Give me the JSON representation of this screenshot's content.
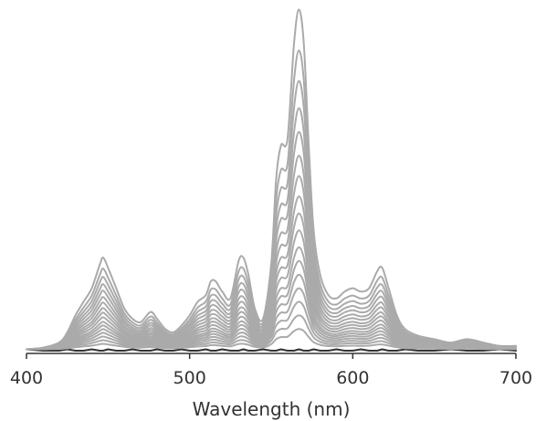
{
  "chart_data": {
    "type": "line",
    "xlabel": "Wavelength (nm)",
    "ylabel": "",
    "xlim": [
      400,
      700
    ],
    "ylim": [
      0,
      1
    ],
    "x_ticks": [
      400,
      500,
      600,
      700
    ],
    "x_tick_labels": [
      "400",
      "500",
      "600",
      "700"
    ],
    "grid": false,
    "legend": "none",
    "colors": {
      "spectra": "#aaaaaa",
      "baseline": "#333333",
      "axis": "#333333"
    },
    "spectrum_count": 17,
    "scale_factors": [
      1.0,
      0.88,
      0.79,
      0.71,
      0.64,
      0.57,
      0.51,
      0.45,
      0.4,
      0.35,
      0.3,
      0.26,
      0.22,
      0.18,
      0.14,
      0.1,
      0.06
    ],
    "reference_spectrum": {
      "x": [
        400,
        410,
        420,
        425,
        430,
        435,
        440,
        445,
        447,
        450,
        455,
        460,
        465,
        470,
        476,
        480,
        485,
        490,
        495,
        500,
        505,
        510,
        513,
        516,
        520,
        525,
        530,
        533,
        536,
        540,
        545,
        550,
        553,
        556,
        560,
        564,
        567,
        570,
        573,
        576,
        580,
        585,
        590,
        595,
        600,
        605,
        610,
        615,
        618,
        622,
        627,
        632,
        640,
        650,
        660,
        670,
        680,
        690,
        700
      ],
      "y": [
        0.0,
        0.005,
        0.02,
        0.05,
        0.1,
        0.14,
        0.18,
        0.25,
        0.27,
        0.24,
        0.18,
        0.12,
        0.09,
        0.08,
        0.11,
        0.09,
        0.06,
        0.05,
        0.07,
        0.1,
        0.14,
        0.16,
        0.2,
        0.2,
        0.17,
        0.15,
        0.26,
        0.27,
        0.22,
        0.12,
        0.09,
        0.25,
        0.5,
        0.6,
        0.62,
        0.9,
        1.0,
        0.9,
        0.6,
        0.35,
        0.22,
        0.16,
        0.15,
        0.17,
        0.18,
        0.17,
        0.18,
        0.23,
        0.24,
        0.18,
        0.1,
        0.06,
        0.04,
        0.03,
        0.02,
        0.03,
        0.02,
        0.01,
        0.01
      ]
    }
  }
}
